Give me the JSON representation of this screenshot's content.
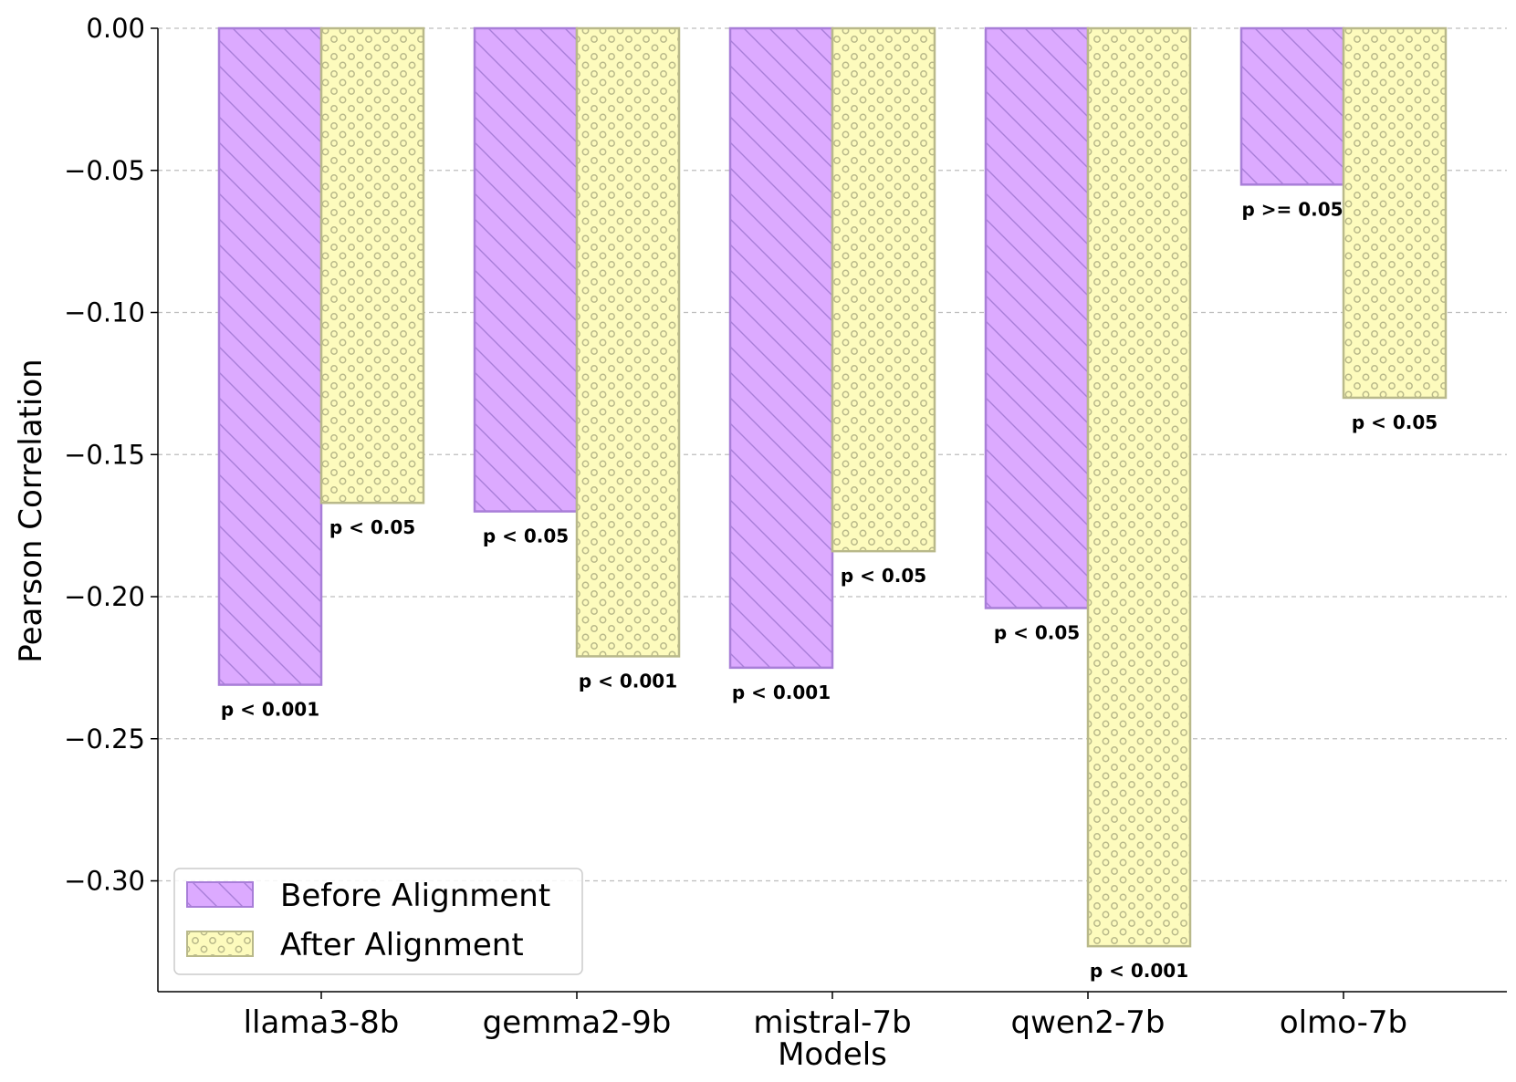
{
  "chart_data": {
    "type": "bar",
    "title": "",
    "xlabel": "Models",
    "ylabel": "Pearson Correlation",
    "categories": [
      "llama3-8b",
      "gemma2-9b",
      "mistral-7b",
      "qwen2-7b",
      "olmo-7b"
    ],
    "ylim": [
      -0.339,
      0.0
    ],
    "yticks": [
      0.0,
      -0.05,
      -0.1,
      -0.15,
      -0.2,
      -0.25,
      -0.3
    ],
    "ytick_labels": [
      "0.00",
      "−0.05",
      "−0.10",
      "−0.15",
      "−0.20",
      "−0.25",
      "−0.30"
    ],
    "grid": "horizontal-dashed",
    "legend_position": "bottom-left",
    "series": [
      {
        "name": "Before Alignment",
        "color": "#dcaaff",
        "edge_color": "#a87ed8",
        "hatch": "diagonal",
        "values": [
          -0.231,
          -0.17,
          -0.225,
          -0.204,
          -0.055
        ],
        "p_labels": [
          "p < 0.001",
          "p < 0.05",
          "p < 0.001",
          "p < 0.05",
          "p >= 0.05"
        ]
      },
      {
        "name": "After Alignment",
        "color": "#fdfbbd",
        "edge_color": "#b9b98a",
        "hatch": "circles",
        "values": [
          -0.167,
          -0.221,
          -0.184,
          -0.323,
          -0.13
        ],
        "p_labels": [
          "p < 0.05",
          "p < 0.001",
          "p < 0.05",
          "p < 0.001",
          "p < 0.05"
        ]
      }
    ]
  }
}
